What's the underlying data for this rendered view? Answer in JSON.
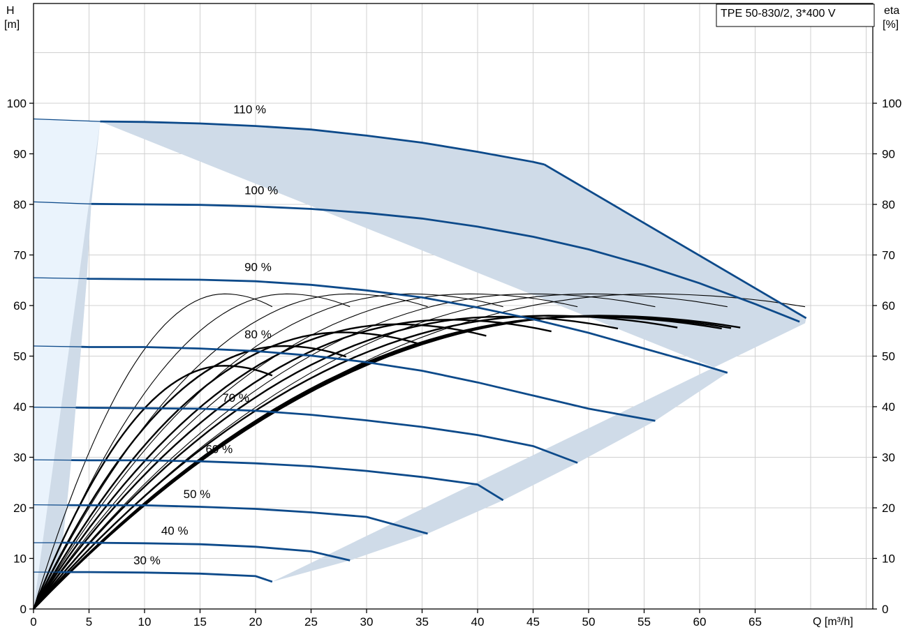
{
  "chart_data": {
    "type": "line",
    "title": "TPE 50-830/2, 3*400 V",
    "x_axis": {
      "label": "Q [m³/h]",
      "range": [
        0,
        75
      ],
      "ticks": [
        0,
        5,
        10,
        15,
        20,
        25,
        30,
        35,
        40,
        45,
        50,
        55,
        60,
        65
      ]
    },
    "y_left": {
      "label_line1": "H",
      "label_line2": "[m]",
      "range": [
        0,
        120
      ],
      "ticks": [
        0,
        10,
        20,
        30,
        40,
        50,
        60,
        70,
        80,
        90,
        100
      ]
    },
    "y_right": {
      "label_line1": "eta",
      "label_line2": "[%]",
      "range": [
        0,
        120
      ],
      "ticks": [
        0,
        10,
        20,
        30,
        40,
        50,
        60,
        70,
        80,
        90,
        100
      ]
    },
    "grid": true,
    "colors": {
      "head_curve": "#0d4a8a",
      "operating_area": "#cfdbe8",
      "low_flow_area": "#eaf3fc",
      "efficiency_curve": "#000000",
      "grid": "#d0d0d0"
    },
    "head_curves": [
      {
        "name": "110 %",
        "label_xy": [
          18,
          98
        ],
        "x": [
          0,
          6,
          10,
          15,
          20,
          25,
          30,
          35,
          40,
          45,
          46
        ],
        "y": [
          96.9,
          96.4,
          96.3,
          96.0,
          95.5,
          94.8,
          93.6,
          92.2,
          90.4,
          88.4,
          87.9
        ]
      },
      {
        "name": "100 %",
        "label_xy": [
          19,
          82
        ],
        "x": [
          0,
          5,
          10,
          15,
          20,
          25,
          30,
          35,
          40,
          45,
          50,
          55,
          60,
          65,
          69
        ],
        "y": [
          80.5,
          80.1,
          80.0,
          79.9,
          79.6,
          79.1,
          78.3,
          77.2,
          75.6,
          73.6,
          71.1,
          68.0,
          64.4,
          60.3,
          56.8
        ]
      },
      {
        "name": "90 %",
        "label_xy": [
          19,
          66.8
        ],
        "x": [
          0,
          5,
          10,
          15,
          20,
          25,
          30,
          35,
          40,
          45,
          50,
          55,
          60,
          62.5
        ],
        "y": [
          65.5,
          65.3,
          65.2,
          65.1,
          64.8,
          64.1,
          63.0,
          61.6,
          59.6,
          57.3,
          54.6,
          51.5,
          48.4,
          46.7
        ]
      },
      {
        "name": "80 %",
        "label_xy": [
          19,
          53.5
        ],
        "x": [
          0,
          5,
          10,
          15,
          20,
          25,
          30,
          35,
          40,
          45,
          50,
          56
        ],
        "y": [
          52.0,
          51.8,
          51.8,
          51.5,
          51.0,
          50.1,
          48.8,
          47.1,
          44.8,
          42.2,
          39.6,
          37.2
        ]
      },
      {
        "name": "70 %",
        "label_xy": [
          17,
          41
        ],
        "x": [
          0,
          5,
          10,
          15,
          20,
          25,
          30,
          35,
          40,
          45,
          49
        ],
        "y": [
          39.9,
          39.8,
          39.7,
          39.6,
          39.2,
          38.4,
          37.3,
          36.0,
          34.4,
          32.2,
          28.9
        ]
      },
      {
        "name": "60 %",
        "label_xy": [
          15.5,
          30.8
        ],
        "x": [
          0,
          5,
          10,
          15,
          20,
          25,
          30,
          35,
          40,
          42.3
        ],
        "y": [
          29.5,
          29.4,
          29.4,
          29.2,
          28.8,
          28.2,
          27.3,
          26.1,
          24.6,
          21.5
        ]
      },
      {
        "name": "50 %",
        "label_xy": [
          13.5,
          21.9
        ],
        "x": [
          0,
          5,
          10,
          15,
          20,
          25,
          30,
          35.5
        ],
        "y": [
          20.6,
          20.5,
          20.5,
          20.2,
          19.8,
          19.1,
          18.2,
          14.9
        ]
      },
      {
        "name": "40 %",
        "label_xy": [
          11.5,
          14.7
        ],
        "x": [
          0,
          5,
          10,
          15,
          20,
          25,
          28.5
        ],
        "y": [
          13.1,
          13.1,
          13.0,
          12.8,
          12.3,
          11.4,
          9.6
        ]
      },
      {
        "name": "30 %",
        "label_xy": [
          9,
          8.8
        ],
        "x": [
          0,
          5,
          10,
          15,
          20,
          21.5
        ],
        "y": [
          7.3,
          7.3,
          7.2,
          7.0,
          6.5,
          5.4
        ]
      }
    ],
    "efficiency_curves": {
      "thin_qmax": [
        21.5,
        28.5,
        35.5,
        42.3,
        49,
        56,
        62.5,
        69.5
      ],
      "thin_peak": 62.3,
      "thick_qmax": [
        21.5,
        28.5,
        35.5,
        42.3,
        49,
        56,
        62.5,
        69.5,
        69.5,
        69.5
      ],
      "thick_peak": [
        48.1,
        52.0,
        54.7,
        56.3,
        57.2,
        57.8,
        58.0,
        58.0,
        57.9,
        57.8
      ]
    }
  }
}
